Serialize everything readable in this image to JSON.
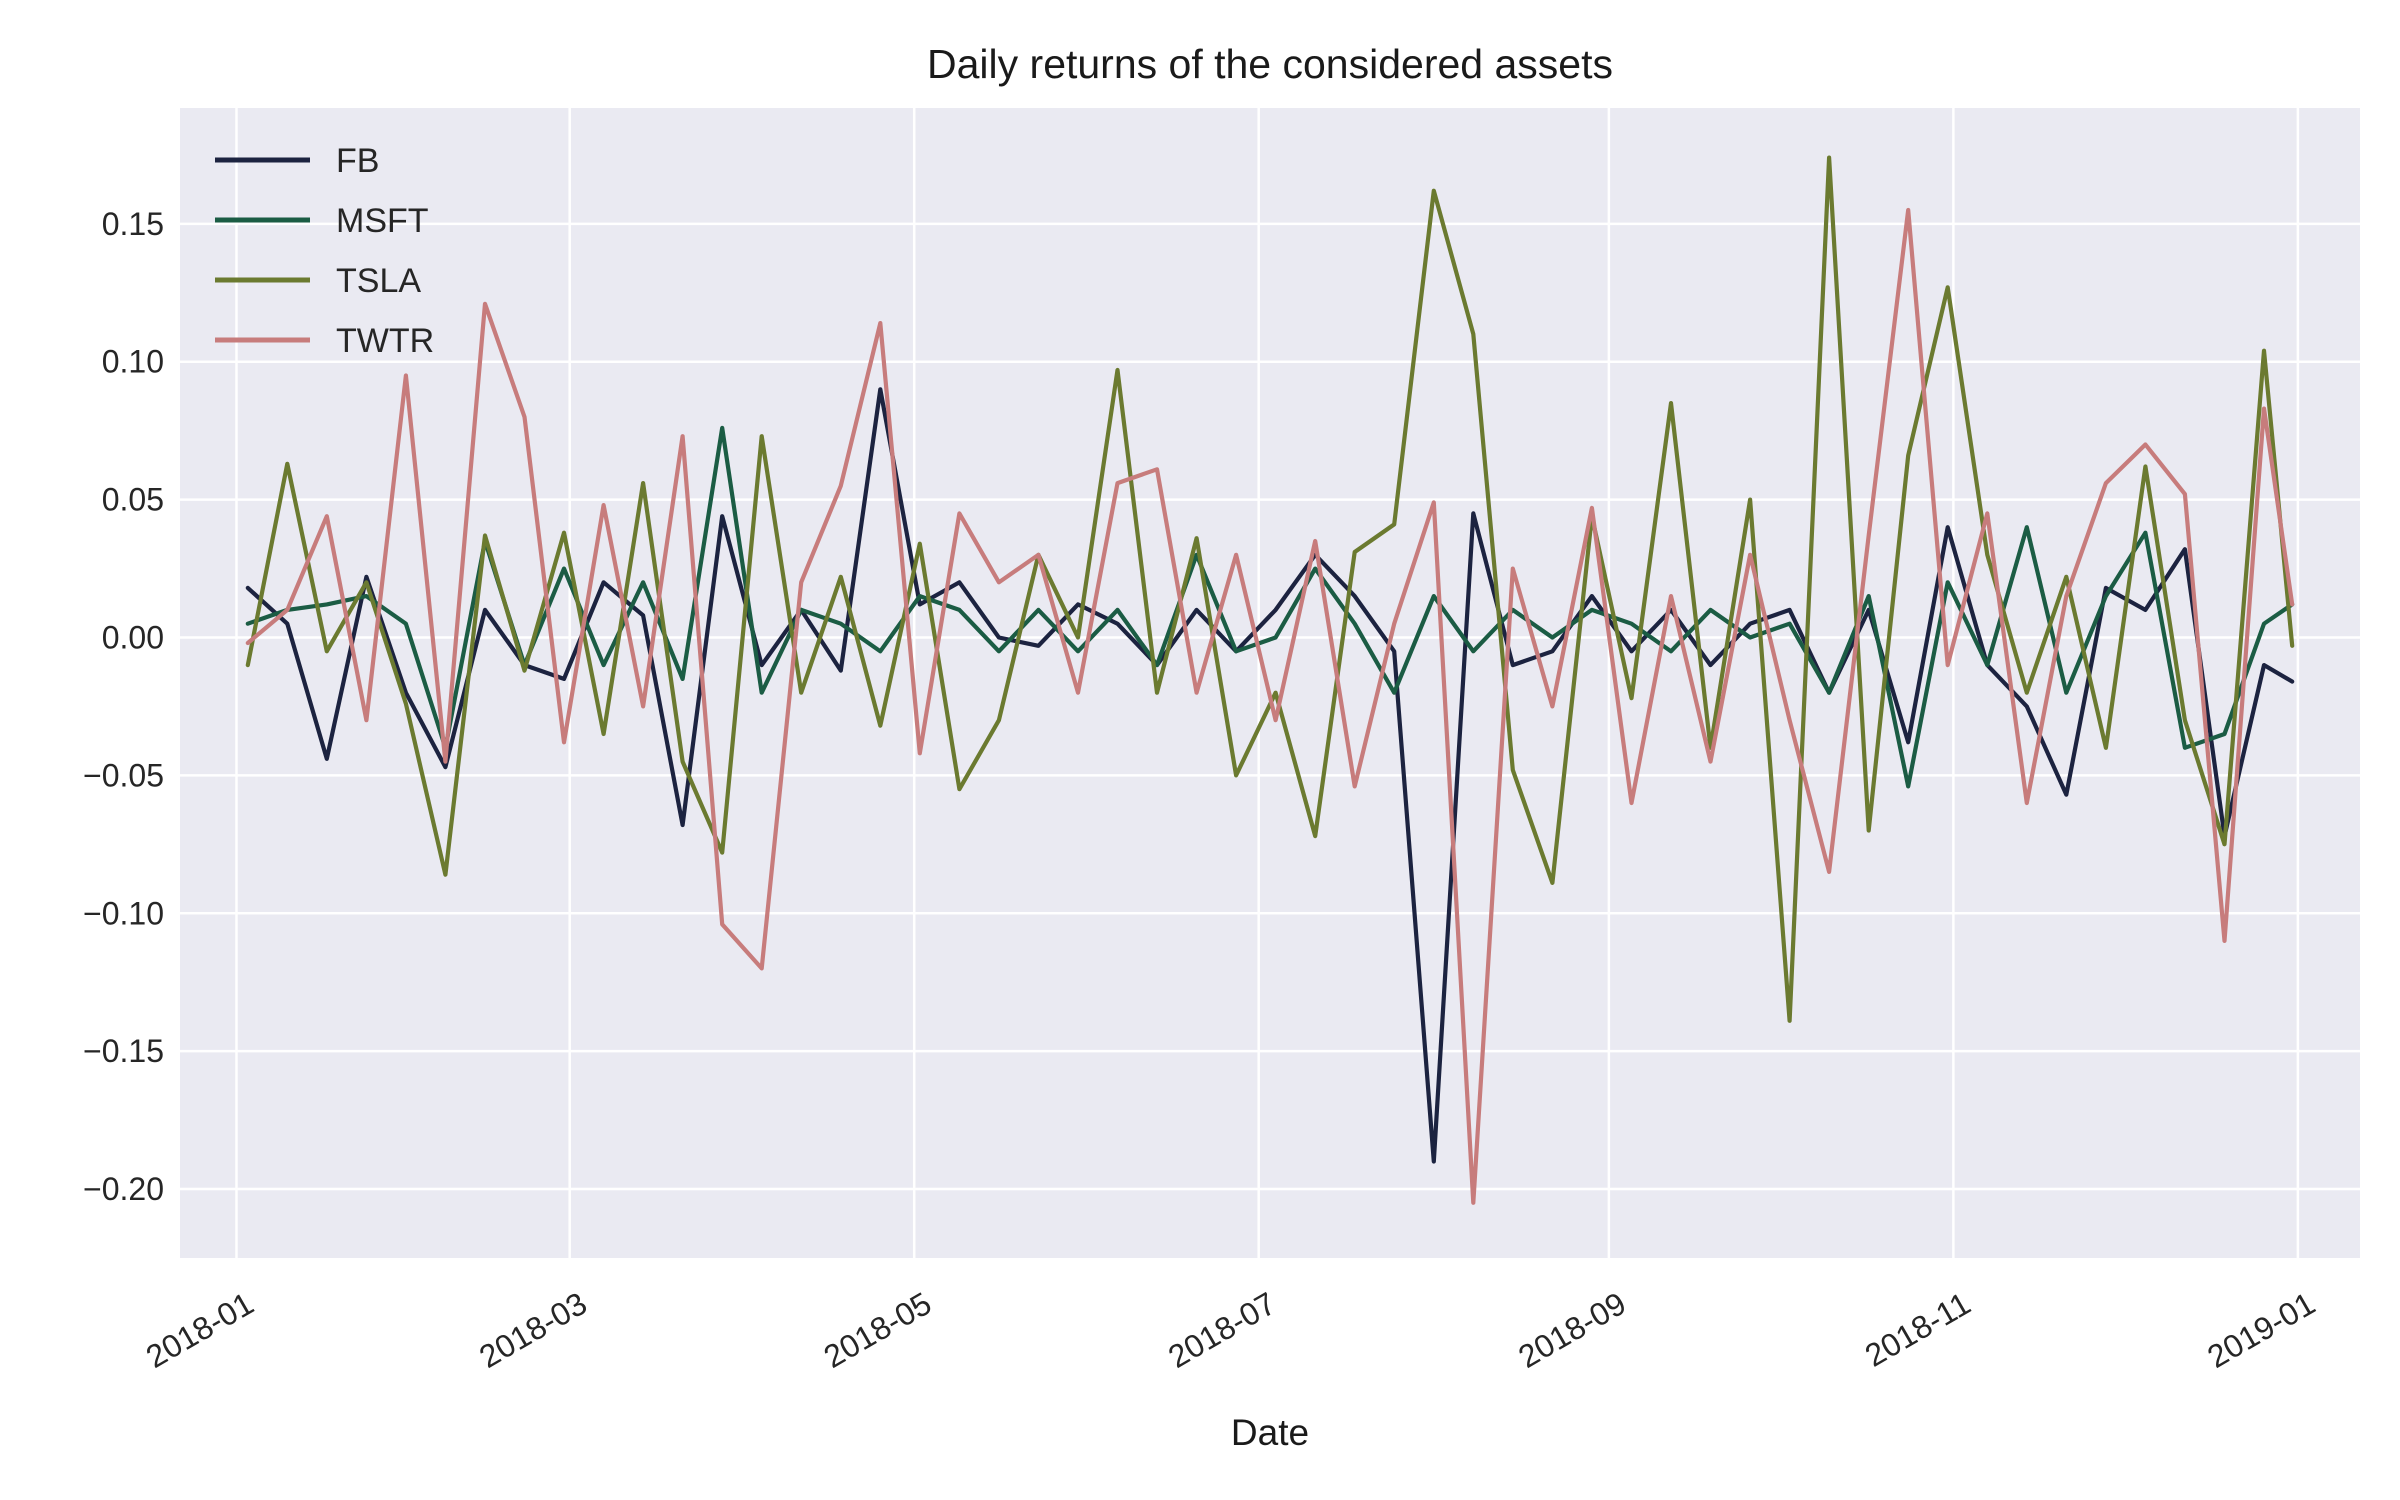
{
  "chart_data": {
    "type": "line",
    "title": "Daily returns of the considered assets",
    "xlabel": "Date",
    "ylabel": "",
    "x_ticks": [
      "2018-01",
      "2018-03",
      "2018-05",
      "2018-07",
      "2018-09",
      "2018-11",
      "2019-01"
    ],
    "x_range": [
      "2017-12-22",
      "2019-01-12"
    ],
    "y_ticks": [
      "0.15",
      "0.10",
      "0.05",
      "0.00",
      "−0.05",
      "−0.10",
      "−0.15",
      "−0.20"
    ],
    "ylim": [
      -0.225,
      0.192
    ],
    "grid": true,
    "legend_position": "top-left",
    "x_dates": [
      "2018-01-03",
      "2018-01-10",
      "2018-01-17",
      "2018-01-24",
      "2018-01-31",
      "2018-02-07",
      "2018-02-14",
      "2018-02-21",
      "2018-02-28",
      "2018-03-07",
      "2018-03-14",
      "2018-03-21",
      "2018-03-28",
      "2018-04-04",
      "2018-04-11",
      "2018-04-18",
      "2018-04-25",
      "2018-05-02",
      "2018-05-09",
      "2018-05-16",
      "2018-05-23",
      "2018-05-30",
      "2018-06-06",
      "2018-06-13",
      "2018-06-20",
      "2018-06-27",
      "2018-07-04",
      "2018-07-11",
      "2018-07-18",
      "2018-07-25",
      "2018-08-01",
      "2018-08-08",
      "2018-08-15",
      "2018-08-22",
      "2018-08-29",
      "2018-09-05",
      "2018-09-12",
      "2018-09-19",
      "2018-09-26",
      "2018-10-03",
      "2018-10-10",
      "2018-10-17",
      "2018-10-24",
      "2018-10-31",
      "2018-11-07",
      "2018-11-14",
      "2018-11-21",
      "2018-11-28",
      "2018-12-05",
      "2018-12-12",
      "2018-12-19",
      "2018-12-26",
      "2018-12-31"
    ],
    "series": [
      {
        "name": "FB",
        "color": "#1c2340",
        "values": [
          0.018,
          0.005,
          -0.044,
          0.022,
          -0.02,
          -0.047,
          0.01,
          -0.01,
          -0.015,
          0.02,
          0.008,
          -0.068,
          0.044,
          -0.01,
          0.01,
          -0.012,
          0.09,
          0.012,
          0.02,
          0.0,
          -0.003,
          0.012,
          0.005,
          -0.01,
          0.01,
          -0.005,
          0.01,
          0.03,
          0.015,
          -0.005,
          -0.19,
          0.045,
          -0.01,
          -0.005,
          0.015,
          -0.005,
          0.01,
          -0.01,
          0.005,
          0.01,
          -0.02,
          0.01,
          -0.038,
          0.04,
          -0.01,
          -0.025,
          -0.057,
          0.018,
          0.01,
          0.032,
          -0.072,
          -0.01,
          -0.016
        ]
      },
      {
        "name": "MSFT",
        "color": "#1b5c44",
        "values": [
          0.005,
          0.01,
          0.012,
          0.015,
          0.005,
          -0.04,
          0.035,
          -0.01,
          0.025,
          -0.01,
          0.02,
          -0.015,
          0.076,
          -0.02,
          0.01,
          0.005,
          -0.005,
          0.015,
          0.01,
          -0.005,
          0.01,
          -0.005,
          0.01,
          -0.01,
          0.03,
          -0.005,
          0.0,
          0.025,
          0.005,
          -0.02,
          0.015,
          -0.005,
          0.01,
          0.0,
          0.01,
          0.005,
          -0.005,
          0.01,
          0.0,
          0.005,
          -0.02,
          0.015,
          -0.054,
          0.02,
          -0.01,
          0.04,
          -0.02,
          0.015,
          0.038,
          -0.04,
          -0.035,
          0.005,
          0.012
        ]
      },
      {
        "name": "TSLA",
        "color": "#6b7a30",
        "values": [
          -0.01,
          0.063,
          -0.005,
          0.02,
          -0.024,
          -0.086,
          0.037,
          -0.012,
          0.038,
          -0.035,
          0.056,
          -0.045,
          -0.078,
          0.073,
          -0.02,
          0.022,
          -0.032,
          0.034,
          -0.055,
          -0.03,
          0.03,
          0.0,
          0.097,
          -0.02,
          0.036,
          -0.05,
          -0.02,
          -0.072,
          0.031,
          0.041,
          0.162,
          0.11,
          -0.048,
          -0.089,
          0.044,
          -0.022,
          0.085,
          -0.04,
          0.05,
          -0.139,
          0.174,
          -0.07,
          0.066,
          0.127,
          0.03,
          -0.02,
          0.022,
          -0.04,
          0.062,
          -0.03,
          -0.075,
          0.104,
          -0.003
        ]
      },
      {
        "name": "TWTR",
        "color": "#c77c7c",
        "values": [
          -0.002,
          0.01,
          0.044,
          -0.03,
          0.095,
          -0.045,
          0.121,
          0.08,
          -0.038,
          0.048,
          -0.025,
          0.073,
          -0.104,
          -0.12,
          0.02,
          0.055,
          0.114,
          -0.042,
          0.045,
          0.02,
          0.03,
          -0.02,
          0.056,
          0.061,
          -0.02,
          0.03,
          -0.03,
          0.035,
          -0.054,
          0.005,
          0.049,
          -0.205,
          0.025,
          -0.025,
          0.047,
          -0.06,
          0.015,
          -0.045,
          0.03,
          -0.03,
          -0.085,
          0.037,
          0.155,
          -0.01,
          0.045,
          -0.06,
          0.015,
          0.056,
          0.07,
          0.052,
          -0.11,
          0.083,
          0.012
        ]
      }
    ]
  }
}
